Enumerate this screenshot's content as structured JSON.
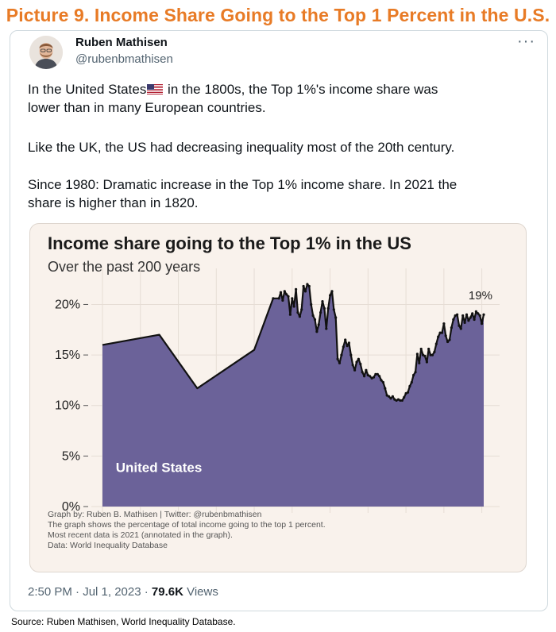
{
  "picture_title": "Picture 9. Income Share Going to the Top 1 Percent in the U.S.",
  "author": {
    "name": "Ruben Mathisen",
    "handle": "@rubenbmathisen"
  },
  "tweet": {
    "line1_before_flag": "In the United States",
    "line1_after_flag": " in the 1800s, the Top 1%'s income share was",
    "line2": "lower than in many European countries.",
    "para2": "Like the UK, the US had decreasing inequality most of the 20th century.",
    "para3_line1": "Since 1980: Dramatic increase in the Top 1% income share. In 2021 the",
    "para3_line2": "share is higher than in 1820."
  },
  "chart_notes": {
    "credit": "Graph by: Ruben B. Mathisen | Twitter: @rubenbmathisen",
    "desc": "The graph shows the percentage of total income going to the top 1 percent.",
    "recent": "Most recent data is 2021 (annotated in the graph).",
    "data": "Data: World Inequality Database"
  },
  "footer": {
    "time": "2:50 PM · Jul 1, 2023 · ",
    "views_count": "79.6K",
    "views_label": " Views"
  },
  "source": "Source: Ruben Mathisen, World Inequality Database.",
  "colors": {
    "area": "#6b6299",
    "line": "#111111",
    "accent_title": "#e87b26"
  },
  "icons": {
    "more": "more-icon",
    "flag": "us-flag-icon"
  },
  "chart_data": {
    "type": "area",
    "title": "Income share going to the Top 1% in the US",
    "subtitle": "Over the past 200 years",
    "series_label": "United States",
    "end_label": "19%",
    "xlim": [
      1820,
      2021
    ],
    "ylim": [
      0,
      22
    ],
    "x_ticks": [
      1820,
      1840,
      1860,
      1880,
      1900,
      1920,
      1940,
      1960,
      1980,
      2000,
      2020
    ],
    "y_ticks": [
      0,
      5,
      10,
      15,
      20
    ],
    "y_tick_labels": [
      "0%",
      "5%",
      "10%",
      "15%",
      "20%"
    ],
    "grid": true,
    "x": [
      1820,
      1850,
      1870,
      1900,
      1910,
      1913,
      1914,
      1915,
      1916,
      1917,
      1918,
      1919,
      1920,
      1921,
      1922,
      1923,
      1924,
      1925,
      1926,
      1927,
      1928,
      1929,
      1930,
      1931,
      1932,
      1933,
      1934,
      1935,
      1936,
      1937,
      1938,
      1939,
      1940,
      1941,
      1942,
      1943,
      1944,
      1945,
      1946,
      1947,
      1948,
      1949,
      1950,
      1951,
      1952,
      1953,
      1954,
      1955,
      1956,
      1957,
      1958,
      1959,
      1960,
      1961,
      1962,
      1963,
      1964,
      1965,
      1966,
      1967,
      1968,
      1969,
      1970,
      1971,
      1972,
      1973,
      1974,
      1975,
      1976,
      1977,
      1978,
      1979,
      1980,
      1981,
      1982,
      1983,
      1984,
      1985,
      1986,
      1987,
      1988,
      1989,
      1990,
      1991,
      1992,
      1993,
      1994,
      1995,
      1996,
      1997,
      1998,
      1999,
      2000,
      2001,
      2002,
      2003,
      2004,
      2005,
      2006,
      2007,
      2008,
      2009,
      2010,
      2011,
      2012,
      2013,
      2014,
      2015,
      2016,
      2017,
      2018,
      2019,
      2020,
      2021
    ],
    "y": [
      16.0,
      17.0,
      11.7,
      15.5,
      20.6,
      20.6,
      21.2,
      20.4,
      21.3,
      21.0,
      20.8,
      19.0,
      20.6,
      19.8,
      21.5,
      19.2,
      18.8,
      19.5,
      21.8,
      21.3,
      22.0,
      21.8,
      20.0,
      18.9,
      18.5,
      17.3,
      18.0,
      19.2,
      20.3,
      19.6,
      17.6,
      19.6,
      20.9,
      21.3,
      19.5,
      18.7,
      14.6,
      14.2,
      15.0,
      15.8,
      16.5,
      15.9,
      16.2,
      15.0,
      14.0,
      13.5,
      14.3,
      14.6,
      14.1,
      13.3,
      12.9,
      13.5,
      13.0,
      12.9,
      12.7,
      12.8,
      13.1,
      13.1,
      12.9,
      12.5,
      12.3,
      11.7,
      11.0,
      10.9,
      10.7,
      10.9,
      10.6,
      10.5,
      10.6,
      10.5,
      10.5,
      10.8,
      11.2,
      11.3,
      11.9,
      12.3,
      13.0,
      13.3,
      15.1,
      14.2,
      15.6,
      15.0,
      14.9,
      14.3,
      15.6,
      15.0,
      15.0,
      15.3,
      16.1,
      16.8,
      17.2,
      17.2,
      18.1,
      16.9,
      16.3,
      16.5,
      17.7,
      18.5,
      18.9,
      19.0,
      17.9,
      17.6,
      18.9,
      18.2,
      19.0,
      18.4,
      18.7,
      19.1,
      18.5,
      19.3,
      19.1,
      18.9,
      18.1,
      19.0
    ]
  }
}
